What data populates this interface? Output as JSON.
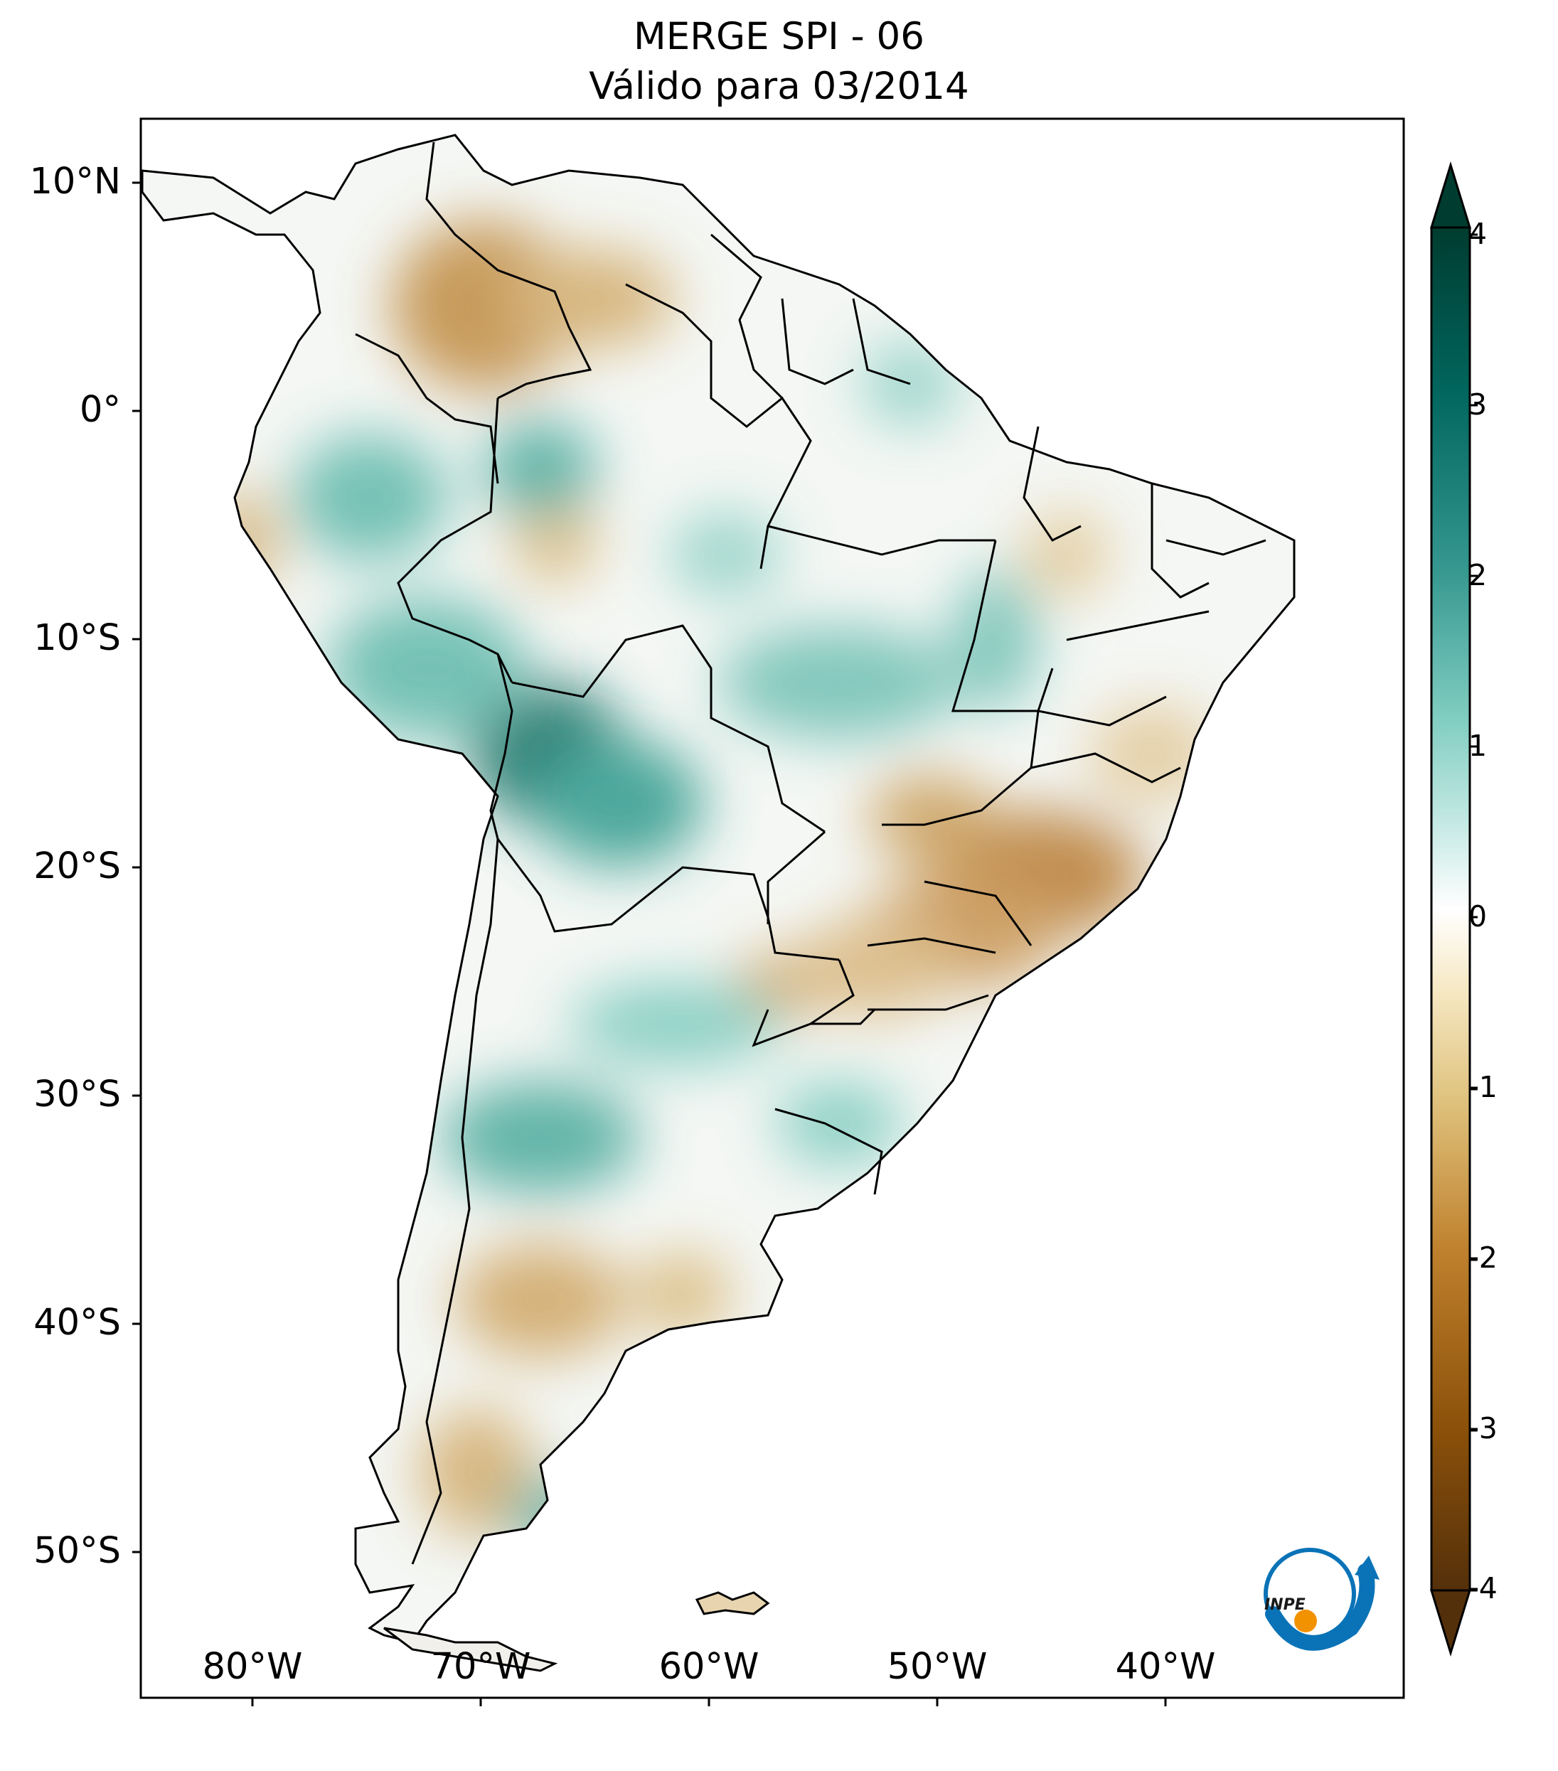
{
  "title": {
    "line1": "MERGE   SPI - 06",
    "line2": "Válido para 03/2014"
  },
  "latitude_labels": [
    "10°N",
    "0°",
    "10°S",
    "20°S",
    "30°S",
    "40°S",
    "50°S"
  ],
  "longitude_labels": [
    "80°W",
    "70°W",
    "60°W",
    "50°W",
    "40°W"
  ],
  "colorbar": {
    "ticks": [
      "4",
      "3",
      "2",
      "1",
      "0",
      "-1",
      "-2",
      "-3",
      "-4"
    ],
    "colors": [
      "#54300a",
      "#8c510a",
      "#bf812d",
      "#dfc27d",
      "#f6e8c3",
      "#ffffff",
      "#c7eae5",
      "#80cdc1",
      "#35978f",
      "#01665e",
      "#003c30"
    ]
  },
  "logo": {
    "text": "INPE",
    "colors": {
      "ring": "#0a73b7",
      "dot": "#f39200"
    }
  },
  "regions": {
    "dry_color": "#c89a52",
    "wet_color": "#2f9a8c"
  }
}
